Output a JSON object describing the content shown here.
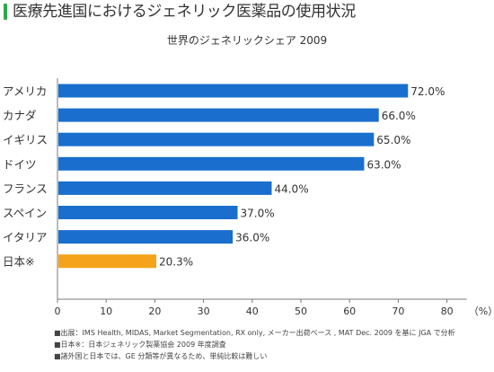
{
  "page_title": "医療先進国におけるジェネリック医薬品の使用状況",
  "colors": {
    "accent": "#2ea84a",
    "bar_default": "#1a6fce",
    "bar_highlight": "#f5a31b",
    "axis": "#7a7a7a",
    "text": "#333333"
  },
  "chart_data": {
    "type": "bar",
    "orientation": "horizontal",
    "title": "世界のジェネリックシェア 2009",
    "categories": [
      "アメリカ",
      "カナダ",
      "イギリス",
      "ドイツ",
      "フランス",
      "スペイン",
      "イタリア",
      "日本※"
    ],
    "values": [
      72.0,
      66.0,
      65.0,
      63.0,
      44.0,
      37.0,
      36.0,
      20.3
    ],
    "value_labels": [
      "72.0%",
      "66.0%",
      "65.0%",
      "63.0%",
      "44.0%",
      "37.0%",
      "36.0%",
      "20.3%"
    ],
    "highlight_category": "日本※",
    "xlim": [
      0,
      80
    ],
    "x_ticks": [
      "0",
      "10",
      "20",
      "30",
      "40",
      "50",
      "60",
      "70",
      "80"
    ],
    "x_unit": "（%）",
    "grid": false,
    "legend": "none"
  },
  "notes": [
    "■出展：IMS Health, MIDAS, Market Segmentation, RX only, メーカー出荷ベース , MAT Dec. 2009 を基に JGA で分析",
    "■日本※：日本ジェネリック製薬協会 2009 年度調査",
    "■諸外国と日本では、GE 分類等が異なるため、単純比較は難しい"
  ]
}
